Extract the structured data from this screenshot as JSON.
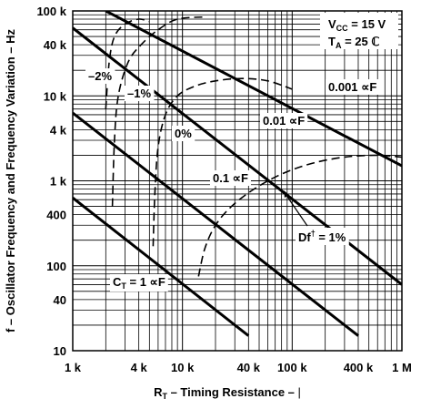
{
  "chart_data": {
    "type": "line",
    "xscale": "log",
    "yscale": "log",
    "xlim": [
      1000,
      1000000
    ],
    "ylim": [
      10,
      100000
    ],
    "grid": true,
    "xlabel": "R",
    "xlabel_sub": "T",
    "xlabel_rest": " – Timing Resistance – ",
    "xlabel_tail": "|",
    "ylabel": "f – Oscillator Frequency and Frequency Variation – Hz",
    "x_tick_values": [
      1000,
      4000,
      10000,
      40000,
      100000,
      400000,
      1000000
    ],
    "x_tick_labels": [
      "1 k",
      "4 k",
      "10 k",
      "40 k",
      "100 k",
      "400 k",
      "1 M"
    ],
    "y_tick_values": [
      10,
      40,
      100,
      400,
      1000,
      4000,
      10000,
      40000,
      100000
    ],
    "y_tick_labels": [
      "10",
      "40",
      "100",
      "400",
      "1 k",
      "4 k",
      "10 k",
      "40 k",
      "100 k"
    ],
    "conditions": {
      "vcc": {
        "base": "V",
        "sub": "CC",
        "rest": " = 15 V"
      },
      "ta": {
        "base": "T",
        "sub": "A",
        "rest": " = 25 ",
        "tail": "ℂ"
      }
    },
    "capacitor_lines": [
      {
        "label": "0.001 ∝F",
        "points": [
          [
            2000,
            100000
          ],
          [
            1000000,
            1500
          ]
        ]
      },
      {
        "label": "0.01 ∝F",
        "points": [
          [
            1000,
            63000
          ],
          [
            1000000,
            60
          ]
        ]
      },
      {
        "label": "0.1 ∝F",
        "points": [
          [
            1000,
            6300
          ],
          [
            400000,
            15
          ]
        ]
      },
      {
        "label": "C",
        "label_sub": "T",
        "label_rest": " = 1 ∝F",
        "points": [
          [
            1000,
            630
          ],
          [
            40000,
            15
          ]
        ]
      }
    ],
    "variation_curves": [
      {
        "label": "–2%",
        "points": [
          [
            2000,
            7000
          ],
          [
            2150,
            25000
          ],
          [
            2400,
            50000
          ],
          [
            3000,
            70000
          ],
          [
            4000,
            80000
          ],
          [
            5000,
            75000
          ]
        ]
      },
      {
        "label": "–1%",
        "points": [
          [
            2300,
            500
          ],
          [
            2400,
            3000
          ],
          [
            2600,
            10000
          ],
          [
            3200,
            25000
          ],
          [
            4200,
            40000
          ],
          [
            6000,
            60000
          ],
          [
            9000,
            80000
          ],
          [
            16000,
            85000
          ]
        ]
      },
      {
        "label": "0%",
        "points": [
          [
            5400,
            170
          ],
          [
            5600,
            700
          ],
          [
            6000,
            2500
          ],
          [
            7000,
            6000
          ],
          [
            9000,
            10000
          ],
          [
            13000,
            13000
          ],
          [
            20000,
            15000
          ],
          [
            35000,
            16000
          ],
          [
            60000,
            15000
          ],
          [
            100000,
            12000
          ]
        ]
      },
      {
        "label": "Df",
        "label_sup": "†",
        "label_rest": " = 1%",
        "points": [
          [
            14000,
            75
          ],
          [
            16000,
            160
          ],
          [
            20000,
            300
          ],
          [
            28000,
            500
          ],
          [
            45000,
            800
          ],
          [
            80000,
            1200
          ],
          [
            150000,
            1600
          ],
          [
            300000,
            1900
          ],
          [
            600000,
            2000
          ],
          [
            1000000,
            1900
          ]
        ]
      }
    ]
  }
}
